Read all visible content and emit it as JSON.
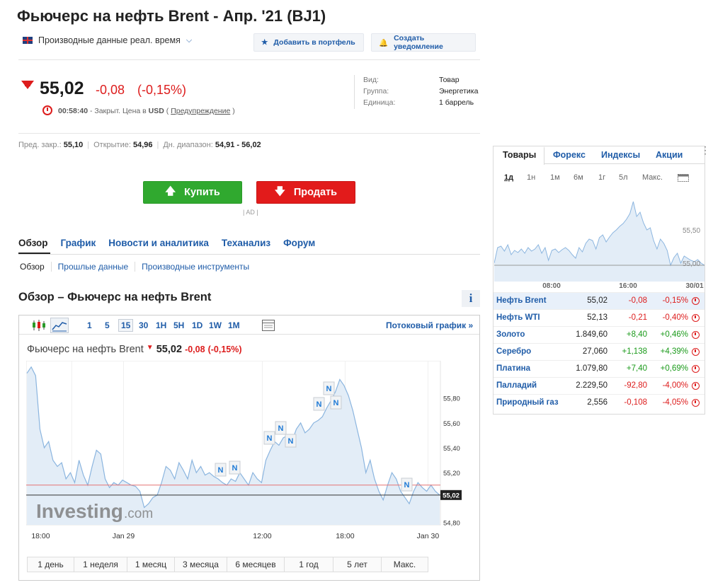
{
  "title": "Фьючерс на нефть Brent - Апр. '21 (BJ1)",
  "subbar": {
    "data_type": "Производные данные реал. время",
    "portfolio_label": "Добавить в портфель",
    "alert_label": "Создать уведомление"
  },
  "quote": {
    "price": "55,02",
    "change": "-0,08",
    "change_pct": "(-0,15%)",
    "time": "00:58:40",
    "status_text": " - Закрыт. Цена в ",
    "currency": "USD",
    "warning_label": "Предупреждение",
    "status_color": "#dd1c1c"
  },
  "info": {
    "type_label": "Вид:",
    "type_value": "Товар",
    "group_label": "Группа:",
    "group_value": "Энергетика",
    "unit_label": "Единица:",
    "unit_value": "1 баррель"
  },
  "stats": {
    "prev_close_label": "Пред. закр.:",
    "prev_close": "55,10",
    "open_label": "Открытие:",
    "open": "54,96",
    "range_label": "Дн. диапазон:",
    "range": "54,91 - 56,02"
  },
  "trade": {
    "buy_label": "Купить",
    "sell_label": "Продать",
    "ad_label": "| AD |",
    "buy_color": "#30a92f",
    "sell_color": "#e21b1b"
  },
  "nav": {
    "main": [
      "Обзор",
      "График",
      "Новости и аналитика",
      "Теханализ",
      "Форум"
    ],
    "sub": [
      "Обзор",
      "Прошлые данные",
      "Производные инструменты"
    ]
  },
  "section_title": "Обзор – Фьючерс на нефть Brent",
  "chart_toolbar": {
    "intervals": [
      "1",
      "5",
      "15",
      "30",
      "1H",
      "5H",
      "1D",
      "1W",
      "1M"
    ],
    "selected_interval": "15",
    "stream_label": "Потоковый график »"
  },
  "chart_header": {
    "name": "Фьючерс на нефть Brent",
    "price": "55,02",
    "change": "-0,08",
    "change_pct": "(-0,15%)"
  },
  "chart_data": {
    "type": "area",
    "y_ticks": [
      "55,80",
      "55,60",
      "55,40",
      "55,20",
      "54,80"
    ],
    "ylim": [
      54.78,
      56.1
    ],
    "x_labels": [
      "18:00",
      "Jan 29",
      "12:00",
      "18:00",
      "Jan 30"
    ],
    "last_label": "55,02",
    "prev_close_line": 55.1,
    "last_value": 55.02,
    "series": [
      {
        "values": [
          56.0,
          56.05,
          55.98,
          55.55,
          55.4,
          55.45,
          55.3,
          55.25,
          55.28,
          55.15,
          55.2,
          55.12,
          55.3,
          55.18,
          55.1,
          55.25,
          55.38,
          55.35,
          55.15,
          55.08,
          55.12,
          55.1,
          55.14,
          55.12,
          55.1,
          55.09,
          55.05,
          54.92,
          54.95,
          55.0,
          55.02,
          55.12,
          55.25,
          55.22,
          55.15,
          55.28,
          55.22,
          55.15,
          55.3,
          55.2,
          55.25,
          55.18,
          55.2,
          55.17,
          55.15,
          55.12,
          55.1,
          55.15,
          55.13,
          55.2,
          55.15,
          55.1,
          55.2,
          55.15,
          55.12,
          55.3,
          55.38,
          55.45,
          55.42,
          55.48,
          55.5,
          55.45,
          55.55,
          55.6,
          55.52,
          55.55,
          55.6,
          55.62,
          55.65,
          55.72,
          55.78,
          55.85,
          55.95,
          55.9,
          55.82,
          55.7,
          55.55,
          55.4,
          55.2,
          55.3,
          55.15,
          55.05,
          54.98,
          55.1,
          55.2,
          55.15,
          55.05,
          55.0,
          54.95,
          55.05,
          55.12,
          55.08,
          55.05,
          55.1,
          55.05,
          55.02
        ]
      }
    ],
    "news_markers": 10
  },
  "periods": [
    "1 день",
    "1 неделя",
    "1 месяц",
    "3 месяца",
    "6 месяцев",
    "1 год",
    "5 лет",
    "Макс."
  ],
  "sidebar": {
    "tabs": [
      "Товары",
      "Форекс",
      "Индексы",
      "Акции"
    ],
    "periods": [
      "1д",
      "1н",
      "1м",
      "6м",
      "1г",
      "5л",
      "Макс."
    ],
    "mini_chart": {
      "y_label": "55,50",
      "y_label2": "55,00",
      "x_labels": [
        "08:00",
        "16:00",
        "30/01"
      ]
    },
    "rows": [
      {
        "name": "Нефть Brent",
        "value": "55,02",
        "change": "-0,08",
        "pct": "-0,15%",
        "dir": "down"
      },
      {
        "name": "Нефть WTI",
        "value": "52,13",
        "change": "-0,21",
        "pct": "-0,40%",
        "dir": "down"
      },
      {
        "name": "Золото",
        "value": "1.849,60",
        "change": "+8,40",
        "pct": "+0,46%",
        "dir": "up"
      },
      {
        "name": "Серебро",
        "value": "27,060",
        "change": "+1,138",
        "pct": "+4,39%",
        "dir": "up"
      },
      {
        "name": "Платина",
        "value": "1.079,80",
        "change": "+7,40",
        "pct": "+0,69%",
        "dir": "up"
      },
      {
        "name": "Палладий",
        "value": "2.229,50",
        "change": "-92,80",
        "pct": "-4,00%",
        "dir": "down"
      },
      {
        "name": "Природный газ",
        "value": "2,556",
        "change": "-0,108",
        "pct": "-4,05%",
        "dir": "down"
      }
    ]
  }
}
